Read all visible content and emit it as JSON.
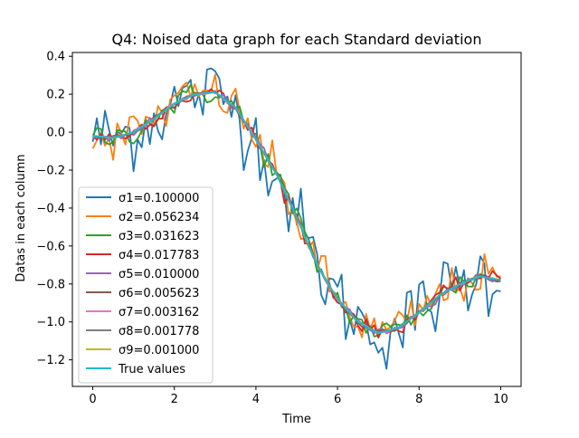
{
  "chart_data": {
    "type": "line",
    "title": "Q4: Noised data graph for each Standard deviation",
    "xlabel": "Time",
    "ylabel": "Datas in each column",
    "xlim": [
      -0.5,
      10.5
    ],
    "ylim": [
      -1.34,
      0.42
    ],
    "xticks": [
      0,
      2,
      4,
      6,
      8,
      10
    ],
    "yticks": [
      0.4,
      0.2,
      0.0,
      -0.2,
      -0.4,
      -0.6,
      -0.8,
      -1.0,
      -1.2
    ],
    "xtick_labels": [
      "0",
      "2",
      "4",
      "6",
      "8",
      "10"
    ],
    "ytick_labels": [
      "0.4",
      "0.2",
      "0.0",
      "−0.2",
      "−0.4",
      "−0.6",
      "−0.8",
      "−1.0",
      "−1.2"
    ],
    "grid": false,
    "legend_position": "lower-left",
    "true_values": {
      "x": [
        0,
        0.5,
        1,
        1.5,
        2,
        2.5,
        3,
        3.5,
        4,
        4.5,
        5,
        5.5,
        6,
        6.5,
        7,
        7.5,
        8,
        8.5,
        9,
        9.5,
        10
      ],
      "y": [
        -0.02,
        -0.03,
        0.0,
        0.07,
        0.15,
        0.2,
        0.21,
        0.13,
        -0.04,
        -0.22,
        -0.45,
        -0.7,
        -0.88,
        -1.0,
        -1.06,
        -1.03,
        -0.95,
        -0.86,
        -0.8,
        -0.76,
        -0.78
      ]
    },
    "series": [
      {
        "name": "σ1=0.100000",
        "sigma": 0.1,
        "color": "#1f77b4"
      },
      {
        "name": "σ2=0.056234",
        "sigma": 0.056234,
        "color": "#ff7f0e"
      },
      {
        "name": "σ3=0.031623",
        "sigma": 0.031623,
        "color": "#2ca02c"
      },
      {
        "name": "σ4=0.017783",
        "sigma": 0.017783,
        "color": "#d62728"
      },
      {
        "name": "σ5=0.010000",
        "sigma": 0.01,
        "color": "#9467bd"
      },
      {
        "name": "σ6=0.005623",
        "sigma": 0.005623,
        "color": "#8c564b"
      },
      {
        "name": "σ7=0.003162",
        "sigma": 0.003162,
        "color": "#e377c2"
      },
      {
        "name": "σ8=0.001778",
        "sigma": 0.001778,
        "color": "#7f7f7f"
      },
      {
        "name": "σ9=0.001000",
        "sigma": 0.001,
        "color": "#bcbd22"
      },
      {
        "name": "True values",
        "sigma": 0,
        "color": "#17becf"
      }
    ]
  }
}
